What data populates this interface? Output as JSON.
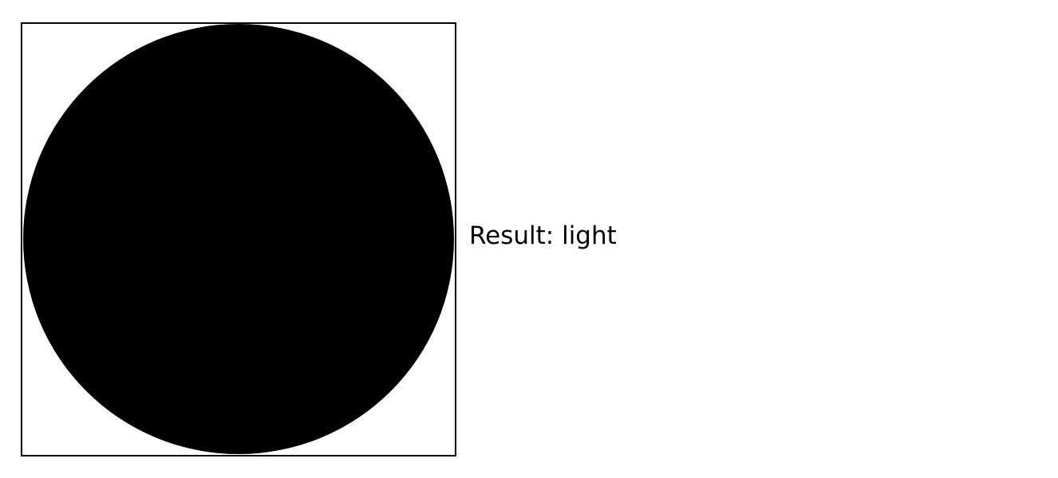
{
  "image": {
    "shape": "filled-circle",
    "fill_color": "#000000",
    "background_color": "#ffffff",
    "border_color": "#000000"
  },
  "result": {
    "text": "Result: light"
  }
}
